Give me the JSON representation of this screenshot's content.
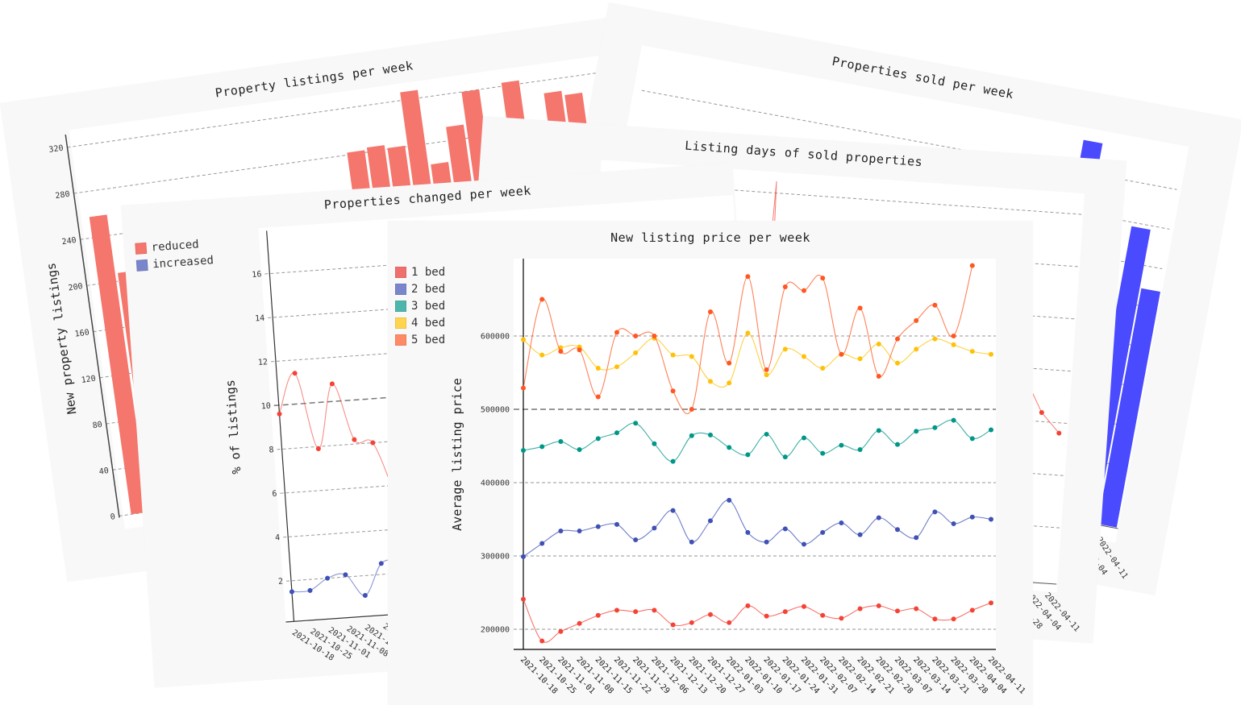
{
  "colors": {
    "card_bg": "#f8f8f8",
    "plot_bg": "#ffffff",
    "grid": "#999999",
    "listings_bar": "#f4766c",
    "sold_bar": "#4a4aff",
    "reduced": "#f4766c",
    "increased": "#7986cb"
  },
  "weeks": [
    "2021-10-18",
    "2021-10-25",
    "2021-11-01",
    "2021-11-08",
    "2021-11-15",
    "2021-11-22",
    "2021-11-29",
    "2021-12-06",
    "2021-12-13",
    "2021-12-20",
    "2021-12-27",
    "2022-01-03",
    "2022-01-10",
    "2022-01-17",
    "2022-01-24",
    "2022-01-31",
    "2022-02-07",
    "2022-02-14",
    "2022-02-21",
    "2022-02-28",
    "2022-03-07",
    "2022-03-14",
    "2022-03-21",
    "2022-03-28",
    "2022-04-04",
    "2022-04-11"
  ],
  "chart_data": [
    {
      "id": "listings",
      "type": "bar",
      "title": "Property listings per week",
      "ylabel": "New property listings",
      "xlabel": "",
      "ylim": [
        0,
        330
      ],
      "yticks": [
        0,
        40,
        80,
        120,
        160,
        200,
        240,
        280,
        320
      ],
      "grid": true,
      "values": [
        258,
        207,
        null,
        null,
        null,
        null,
        null,
        null,
        null,
        null,
        null,
        null,
        null,
        282,
        284,
        281,
        327,
        262,
        292,
        320,
        null,
        323,
        null,
        309,
        305,
        284
      ]
    },
    {
      "id": "sold",
      "type": "bar",
      "title": "Properties sold per week",
      "xtick_labels_visible": [
        "2022-04-04",
        "2022-04-11"
      ],
      "values": [
        null,
        null,
        null,
        null,
        null,
        null,
        null,
        null,
        null,
        null,
        null,
        null,
        null,
        null,
        null,
        null,
        null,
        null,
        null,
        null,
        null,
        133,
        null,
        null,
        106,
        85
      ]
    },
    {
      "id": "days",
      "type": "line",
      "title": "Listing days of sold properties",
      "xtick_labels_visible": [
        "2022-03-28",
        "2022-04-04",
        "2022-04-11"
      ],
      "values": [
        null,
        null,
        null,
        null,
        null,
        null,
        null,
        null,
        null,
        73,
        null,
        null,
        null,
        null,
        null,
        null,
        null,
        null,
        null,
        null,
        null,
        null,
        null,
        null,
        32.5,
        28.8
      ]
    },
    {
      "id": "changed",
      "type": "line",
      "title": "Properties changed per week",
      "ylabel": "% of listings",
      "ylim": [
        0,
        17.5
      ],
      "yticks": [
        2,
        4,
        6,
        8,
        10,
        12,
        14,
        16
      ],
      "grid": true,
      "legend": "top-left",
      "series": [
        {
          "name": "reduced",
          "values": [
            9.6,
            11.4,
            7.9,
            10.8,
            8.2,
            8.0,
            5.6
          ]
        },
        {
          "name": "increased",
          "values": [
            1.5,
            1.5,
            2.0,
            2.1,
            1.1,
            2.5,
            2.6
          ]
        }
      ]
    },
    {
      "id": "main",
      "type": "line",
      "title": "New listing price per week",
      "ylabel": "Average listing price",
      "xlabel": "",
      "ylim": [
        172500,
        705000
      ],
      "yticks": [
        200000,
        300000,
        400000,
        500000,
        600000
      ],
      "grid": true,
      "legend": "left",
      "series": [
        {
          "name": "1 bed",
          "color": "#f44336",
          "swatch": "#ef6f6c",
          "values": [
            241000,
            184000,
            197000,
            208000,
            219000,
            226000,
            224000,
            226000,
            206000,
            209000,
            220000,
            209000,
            232000,
            218000,
            224000,
            231000,
            219000,
            215000,
            228000,
            232000,
            225000,
            228000,
            214000,
            214000,
            226000,
            236000
          ]
        },
        {
          "name": "2 bed",
          "color": "#3f51b5",
          "swatch": "#7986cb",
          "values": [
            299000,
            317000,
            334000,
            334000,
            340000,
            343000,
            322000,
            338000,
            362000,
            319000,
            348000,
            376000,
            332000,
            319000,
            337000,
            316000,
            332000,
            345000,
            329000,
            352000,
            336000,
            325000,
            360000,
            344000,
            353000,
            350000
          ]
        },
        {
          "name": "3 bed",
          "color": "#009688",
          "swatch": "#4db6ac",
          "values": [
            444000,
            449000,
            456000,
            445000,
            460000,
            468000,
            481000,
            453000,
            429000,
            464000,
            465000,
            448000,
            438000,
            466000,
            435000,
            461000,
            440000,
            451000,
            445000,
            471000,
            452000,
            470000,
            475000,
            485000,
            460000,
            472000
          ]
        },
        {
          "name": "4 bed",
          "color": "#ffc107",
          "swatch": "#ffd54f",
          "values": [
            595000,
            574000,
            584000,
            585000,
            556000,
            558000,
            577000,
            597000,
            574000,
            572000,
            538000,
            536000,
            604000,
            547000,
            582000,
            572000,
            556000,
            575000,
            569000,
            589000,
            563000,
            582000,
            596000,
            588000,
            579000,
            575000
          ]
        },
        {
          "name": "5 bed",
          "color": "#ff5722",
          "swatch": "#ff8a65",
          "values": [
            529000,
            650000,
            579000,
            581000,
            517000,
            605000,
            600000,
            600000,
            525000,
            500000,
            633000,
            563000,
            681000,
            554000,
            667000,
            662000,
            679000,
            575000,
            638000,
            545000,
            596000,
            621000,
            642000,
            600000,
            696000,
            null
          ]
        }
      ]
    }
  ]
}
